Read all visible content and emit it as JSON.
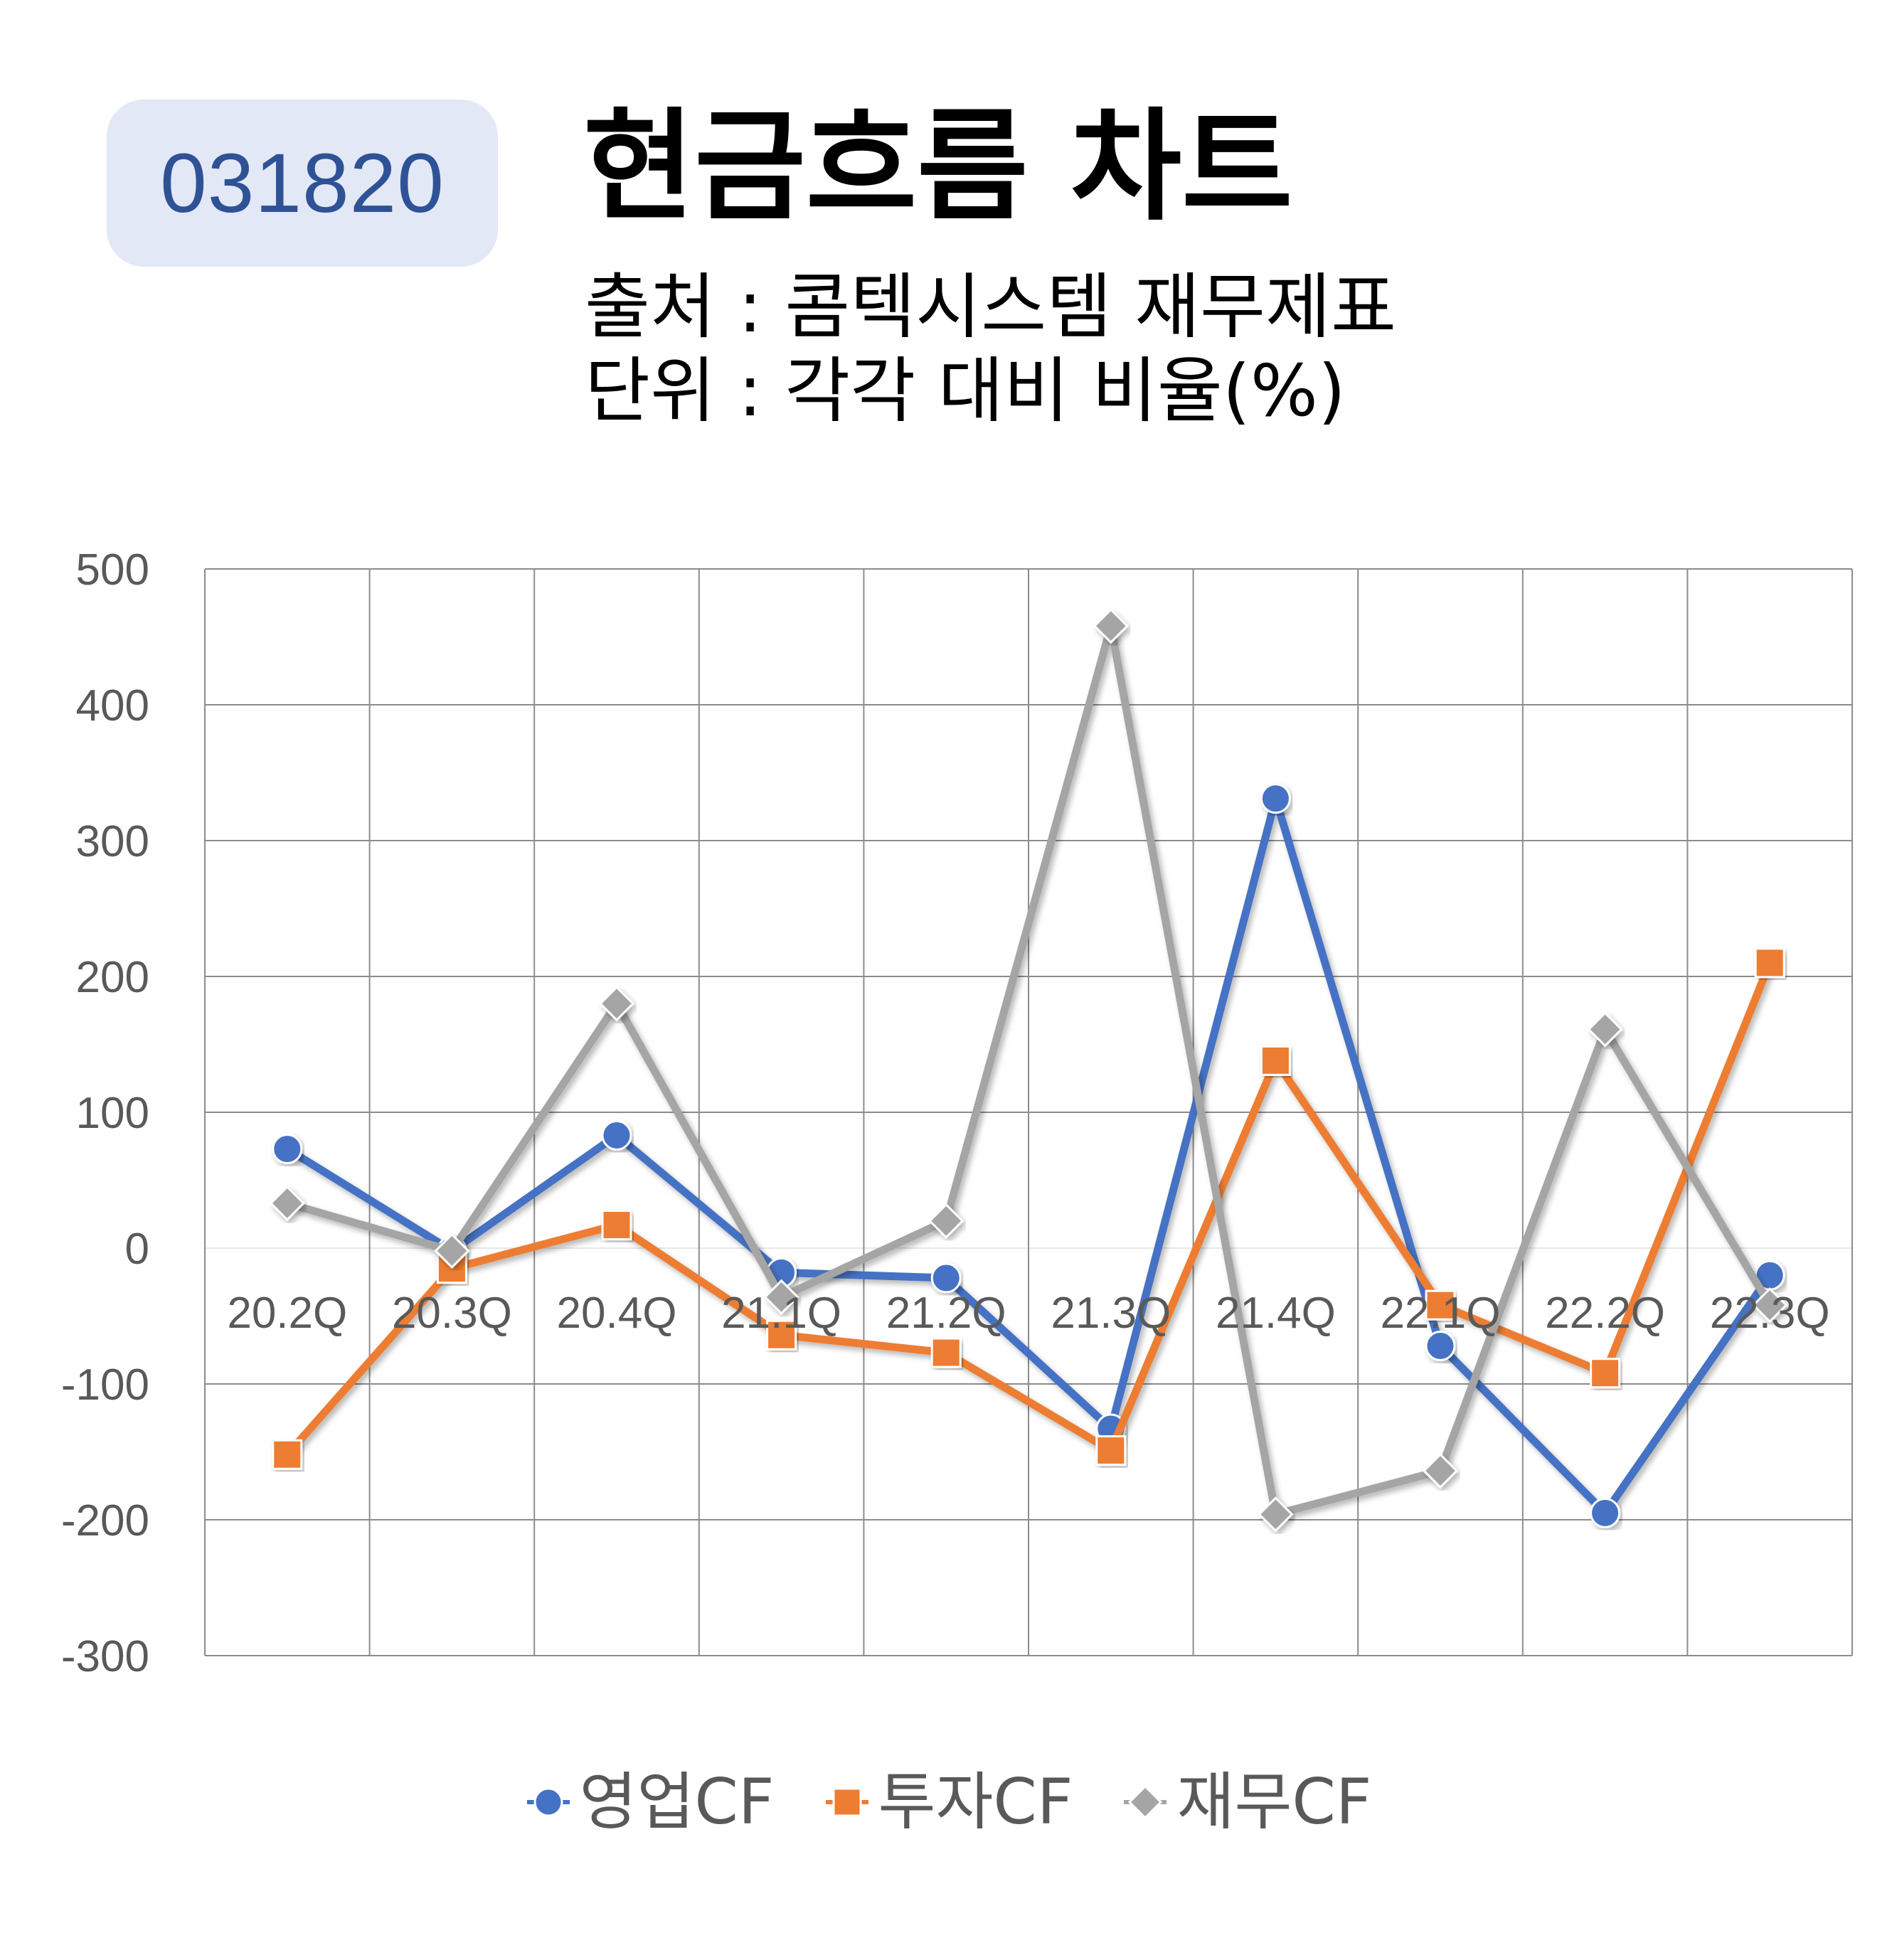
{
  "badge": {
    "code": "031820"
  },
  "header": {
    "title": "현금흐름 차트",
    "source": "출처 : 콤텍시스템 재무제표",
    "unit": "단위 : 각각 대비 비율(%)"
  },
  "colors": {
    "operating": "#4472c4",
    "investing": "#ed7d31",
    "financing": "#a5a5a5"
  },
  "chart_data": {
    "type": "line",
    "categories": [
      "20.2Q",
      "20.3Q",
      "20.4Q",
      "21.1Q",
      "21.2Q",
      "21.3Q",
      "21.4Q",
      "22.1Q",
      "22.2Q",
      "22.3Q"
    ],
    "ylim": [
      -300,
      500
    ],
    "yticks": [
      500,
      400,
      300,
      200,
      100,
      0,
      -100,
      -200,
      -300
    ],
    "grid": true,
    "legend_position": "bottom",
    "series": [
      {
        "name": "영업CF",
        "marker": "circle",
        "color": "#4472c4",
        "values": [
          73,
          -2,
          83,
          -18,
          -22,
          -133,
          331,
          -72,
          -195,
          -20
        ]
      },
      {
        "name": "투자CF",
        "marker": "square",
        "color": "#ed7d31",
        "values": [
          -152,
          -15,
          17,
          -64,
          -77,
          -149,
          138,
          -42,
          -92,
          210
        ]
      },
      {
        "name": "재무CF",
        "marker": "diamond",
        "color": "#a5a5a5",
        "values": [
          33,
          -2,
          180,
          -36,
          20,
          458,
          -196,
          -164,
          161,
          -42
        ]
      }
    ]
  }
}
